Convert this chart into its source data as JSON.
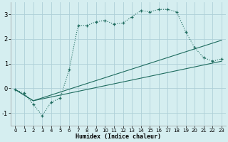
{
  "xlabel": "Humidex (Indice chaleur)",
  "bg_color": "#d5eef0",
  "grid_color": "#aed0d8",
  "line_color": "#1e6b5e",
  "xlim": [
    -0.5,
    23.5
  ],
  "ylim": [
    -1.5,
    3.5
  ],
  "yticks": [
    -1,
    0,
    1,
    2,
    3
  ],
  "xticks": [
    0,
    1,
    2,
    3,
    4,
    5,
    6,
    7,
    8,
    9,
    10,
    11,
    12,
    13,
    14,
    15,
    16,
    17,
    18,
    19,
    20,
    21,
    22,
    23
  ],
  "line1_x": [
    0,
    1,
    2,
    3,
    4,
    5,
    6,
    7,
    8,
    9,
    10,
    11,
    12,
    13,
    14,
    15,
    16,
    17,
    18,
    19,
    20,
    21,
    22,
    23
  ],
  "line1_y": [
    -0.05,
    -0.2,
    -0.65,
    -1.1,
    -0.55,
    -0.4,
    0.75,
    2.55,
    2.55,
    2.7,
    2.75,
    2.6,
    2.65,
    2.9,
    3.15,
    3.1,
    3.2,
    3.2,
    3.1,
    2.3,
    1.65,
    1.25,
    1.1,
    1.2
  ],
  "line2_x": [
    0,
    2,
    23
  ],
  "line2_y": [
    -0.05,
    -0.5,
    1.95
  ],
  "line3_x": [
    0,
    2,
    23
  ],
  "line3_y": [
    -0.05,
    -0.5,
    1.1
  ]
}
